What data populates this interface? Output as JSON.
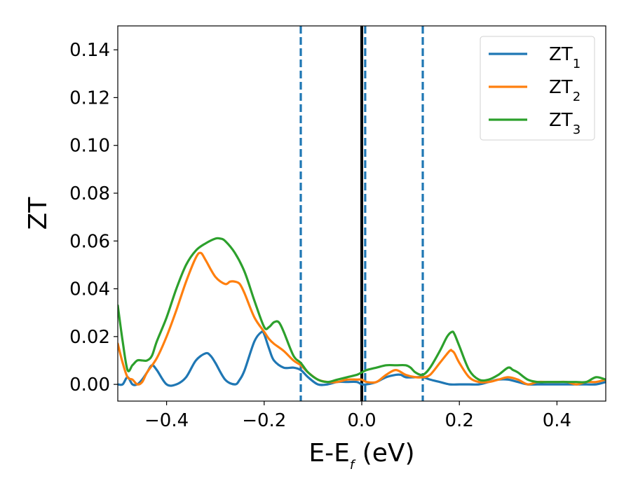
{
  "chart_data": {
    "type": "line",
    "xlabel": {
      "main": "E-E",
      "sub": "f",
      "suffix": " (eV)"
    },
    "ylabel": "ZT",
    "xlim": [
      -0.5,
      0.5
    ],
    "ylim": [
      -0.007,
      0.15
    ],
    "xticks": [
      -0.4,
      -0.2,
      0.0,
      0.2,
      0.4
    ],
    "xtick_labels": [
      "−0.4",
      "−0.2",
      "0.0",
      "0.2",
      "0.4"
    ],
    "yticks": [
      0.0,
      0.02,
      0.04,
      0.06,
      0.08,
      0.1,
      0.12,
      0.14
    ],
    "ytick_labels": [
      "0.00",
      "0.02",
      "0.04",
      "0.06",
      "0.08",
      "0.10",
      "0.12",
      "0.14"
    ],
    "grid": false,
    "legend_position": "top-right",
    "vertical_lines": [
      {
        "x": -0.125,
        "style": "dashed",
        "color": "#1f77b4"
      },
      {
        "x": 0.0,
        "style": "solid",
        "color": "#000000"
      },
      {
        "x": 0.007,
        "style": "dashed",
        "color": "#1f77b4"
      },
      {
        "x": 0.125,
        "style": "dashed",
        "color": "#1f77b4"
      }
    ],
    "series": [
      {
        "name": "ZT",
        "sub": "1",
        "color": "#1f77b4",
        "x": [
          -0.5,
          -0.49,
          -0.48,
          -0.47,
          -0.46,
          -0.45,
          -0.44,
          -0.43,
          -0.42,
          -0.4,
          -0.38,
          -0.36,
          -0.34,
          -0.32,
          -0.31,
          -0.3,
          -0.28,
          -0.26,
          -0.25,
          -0.24,
          -0.22,
          -0.205,
          -0.2,
          -0.19,
          -0.18,
          -0.16,
          -0.14,
          -0.125,
          -0.11,
          -0.09,
          -0.07,
          -0.05,
          -0.03,
          -0.01,
          0.0,
          0.01,
          0.03,
          0.05,
          0.07,
          0.08,
          0.09,
          0.11,
          0.125,
          0.14,
          0.16,
          0.18,
          0.2,
          0.22,
          0.24,
          0.26,
          0.28,
          0.3,
          0.32,
          0.34,
          0.36,
          0.38,
          0.4,
          0.42,
          0.44,
          0.46,
          0.48,
          0.5
        ],
        "y": [
          0.0,
          0.0,
          0.003,
          0.0,
          0.0,
          0.002,
          0.005,
          0.008,
          0.006,
          0.0,
          0.0,
          0.003,
          0.01,
          0.013,
          0.012,
          0.009,
          0.002,
          0.0,
          0.002,
          0.006,
          0.018,
          0.022,
          0.021,
          0.015,
          0.01,
          0.007,
          0.007,
          0.006,
          0.003,
          0.0,
          0.0,
          0.001,
          0.001,
          0.001,
          0.0,
          0.0,
          0.001,
          0.003,
          0.004,
          0.004,
          0.003,
          0.003,
          0.003,
          0.002,
          0.001,
          0.0,
          0.0,
          0.0,
          0.0,
          0.001,
          0.002,
          0.002,
          0.001,
          0.0,
          0.0,
          0.0,
          0.0,
          0.0,
          0.0,
          0.0,
          0.0,
          0.001
        ]
      },
      {
        "name": "ZT",
        "sub": "2",
        "color": "#ff7f0e",
        "x": [
          -0.5,
          -0.49,
          -0.48,
          -0.47,
          -0.46,
          -0.45,
          -0.44,
          -0.42,
          -0.4,
          -0.38,
          -0.36,
          -0.34,
          -0.33,
          -0.32,
          -0.3,
          -0.28,
          -0.27,
          -0.26,
          -0.25,
          -0.24,
          -0.22,
          -0.2,
          -0.19,
          -0.18,
          -0.16,
          -0.14,
          -0.125,
          -0.11,
          -0.09,
          -0.07,
          -0.05,
          -0.03,
          -0.01,
          0.0,
          0.01,
          0.03,
          0.05,
          0.07,
          0.09,
          0.11,
          0.125,
          0.14,
          0.16,
          0.18,
          0.185,
          0.19,
          0.2,
          0.22,
          0.24,
          0.26,
          0.28,
          0.3,
          0.32,
          0.34,
          0.36,
          0.38,
          0.4,
          0.42,
          0.44,
          0.46,
          0.48,
          0.5
        ],
        "y": [
          0.017,
          0.009,
          0.003,
          0.002,
          0.0,
          0.001,
          0.005,
          0.011,
          0.02,
          0.031,
          0.043,
          0.053,
          0.055,
          0.052,
          0.045,
          0.042,
          0.043,
          0.043,
          0.042,
          0.038,
          0.028,
          0.022,
          0.019,
          0.017,
          0.014,
          0.01,
          0.008,
          0.005,
          0.002,
          0.001,
          0.001,
          0.002,
          0.002,
          0.002,
          0.001,
          0.001,
          0.004,
          0.006,
          0.004,
          0.003,
          0.003,
          0.004,
          0.009,
          0.014,
          0.014,
          0.013,
          0.009,
          0.003,
          0.001,
          0.001,
          0.002,
          0.003,
          0.002,
          0.0,
          0.001,
          0.001,
          0.001,
          0.001,
          0.0,
          0.001,
          0.001,
          0.002
        ]
      },
      {
        "name": "ZT",
        "sub": "3",
        "color": "#2ca02c",
        "x": [
          -0.5,
          -0.49,
          -0.48,
          -0.47,
          -0.46,
          -0.45,
          -0.44,
          -0.43,
          -0.42,
          -0.4,
          -0.38,
          -0.36,
          -0.34,
          -0.32,
          -0.3,
          -0.29,
          -0.28,
          -0.26,
          -0.24,
          -0.22,
          -0.2,
          -0.19,
          -0.18,
          -0.17,
          -0.16,
          -0.14,
          -0.125,
          -0.11,
          -0.09,
          -0.07,
          -0.05,
          -0.03,
          -0.01,
          0.0,
          0.01,
          0.03,
          0.05,
          0.07,
          0.09,
          0.1,
          0.11,
          0.125,
          0.14,
          0.16,
          0.175,
          0.185,
          0.19,
          0.2,
          0.22,
          0.24,
          0.26,
          0.28,
          0.3,
          0.31,
          0.32,
          0.34,
          0.36,
          0.38,
          0.4,
          0.42,
          0.44,
          0.46,
          0.48,
          0.5
        ],
        "y": [
          0.033,
          0.018,
          0.006,
          0.008,
          0.01,
          0.01,
          0.01,
          0.012,
          0.018,
          0.028,
          0.04,
          0.05,
          0.056,
          0.059,
          0.061,
          0.061,
          0.06,
          0.055,
          0.047,
          0.035,
          0.024,
          0.024,
          0.026,
          0.026,
          0.022,
          0.012,
          0.009,
          0.005,
          0.002,
          0.001,
          0.002,
          0.003,
          0.004,
          0.005,
          0.006,
          0.007,
          0.008,
          0.008,
          0.008,
          0.007,
          0.005,
          0.004,
          0.007,
          0.014,
          0.02,
          0.022,
          0.021,
          0.016,
          0.006,
          0.002,
          0.002,
          0.004,
          0.007,
          0.006,
          0.005,
          0.002,
          0.001,
          0.001,
          0.001,
          0.001,
          0.001,
          0.001,
          0.003,
          0.002
        ]
      }
    ]
  }
}
